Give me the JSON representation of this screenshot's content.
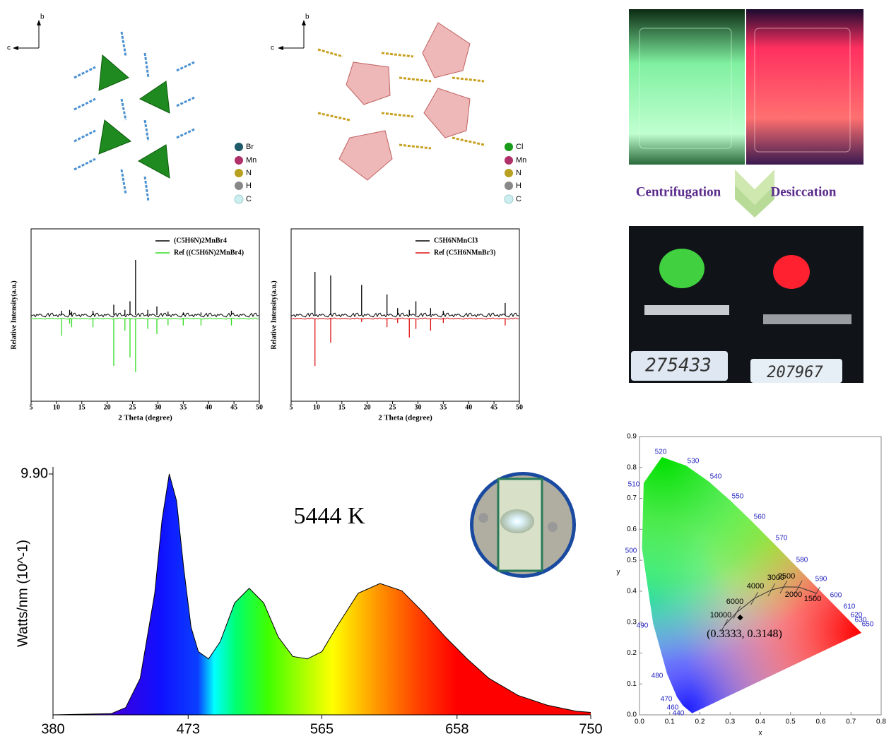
{
  "structures": [
    {
      "axis_b": "b",
      "axis_c": "c",
      "legend": [
        "Br",
        "Mn",
        "N",
        "H",
        "C"
      ]
    },
    {
      "axis_b": "b",
      "axis_c": "c",
      "legend": [
        "Cl",
        "Mn",
        "N",
        "H",
        "C"
      ]
    }
  ],
  "process": {
    "steps": [
      "Centrifugation",
      "Desiccation"
    ],
    "balance_readings": [
      "275433",
      "207967"
    ]
  },
  "chart_data": [
    {
      "type": "stem",
      "x_label": "2 Theta (degree)",
      "y_label": "Relative Intensity(a.u.)",
      "xlim": [
        5,
        50
      ],
      "xticks": [
        5,
        10,
        15,
        20,
        25,
        30,
        35,
        40,
        45,
        50
      ],
      "ylim": [
        -100,
        100
      ],
      "x": [
        11,
        12.6,
        13,
        17.2,
        21.3,
        23.5,
        24.5,
        25.6,
        28,
        29.8,
        32,
        35,
        38.5,
        44.5
      ],
      "series": [
        {
          "name": "(C5H6N)2MnBr4",
          "color": "#000000",
          "values": [
            5,
            6,
            4,
            5,
            12,
            6,
            16,
            64,
            6,
            10,
            4,
            3,
            3,
            5
          ]
        },
        {
          "name": "Ref ((C5H6N)2MnBr4)",
          "color": "#33dd22",
          "values": [
            -20,
            -6,
            -10,
            -10,
            -55,
            -14,
            -45,
            -62,
            -12,
            -18,
            -8,
            -8,
            -8,
            -8
          ]
        }
      ]
    },
    {
      "type": "stem",
      "x_label": "2 Theta (degree)",
      "y_label": "Relative Intensity(a.u.)",
      "xlim": [
        5,
        50
      ],
      "xticks": [
        5,
        10,
        15,
        20,
        25,
        30,
        35,
        40,
        45,
        50
      ],
      "ylim": [
        -100,
        100
      ],
      "x": [
        9.7,
        12.8,
        18.9,
        23.9,
        26,
        28.3,
        29.6,
        32.5,
        35,
        47.2
      ],
      "series": [
        {
          "name": "C5H6NMnCl3",
          "color": "#000000",
          "values": [
            50,
            46,
            35,
            24,
            8,
            6,
            16,
            8,
            5,
            14
          ]
        },
        {
          "name": "Ref (C5H6NMnBr3)",
          "color": "#dd1111",
          "values": [
            -55,
            -28,
            -4,
            -10,
            -5,
            -22,
            -12,
            -14,
            -5,
            -8
          ]
        }
      ]
    },
    {
      "type": "spectrum",
      "y_label": "Watts/nm (10^-1)",
      "annotation": "5444 K",
      "xlim": [
        380,
        750
      ],
      "xticks": [
        380,
        473,
        565,
        658,
        750
      ],
      "ylim": [
        0,
        9.9
      ],
      "yticks": [
        {
          "value": 9.9,
          "label": "9.90"
        }
      ],
      "x": [
        380,
        420,
        430,
        440,
        450,
        455,
        460,
        465,
        470,
        475,
        480,
        487,
        495,
        505,
        515,
        525,
        535,
        545,
        555,
        565,
        575,
        590,
        605,
        620,
        635,
        650,
        665,
        680,
        700,
        720,
        740,
        750
      ],
      "values": [
        0,
        0.05,
        0.3,
        1.5,
        5,
        8,
        9.9,
        8.8,
        6,
        3.6,
        2.6,
        2.3,
        3,
        4.6,
        5.2,
        4.6,
        3.2,
        2.4,
        2.3,
        2.6,
        3.6,
        5,
        5.4,
        5.1,
        4.2,
        3.2,
        2.3,
        1.5,
        0.8,
        0.4,
        0.15,
        0.1
      ]
    },
    {
      "type": "cie",
      "x_label": "x",
      "y_label": "y",
      "xlim": [
        0,
        0.8
      ],
      "ylim": [
        0,
        0.9
      ],
      "xticks": [
        {
          "value": 0,
          "label": "0.0"
        },
        0.1,
        0.2,
        0.3,
        0.4,
        0.5,
        0.6,
        0.7,
        0.8
      ],
      "yticks": [
        {
          "value": 0,
          "label": "0.0"
        },
        0.1,
        0.2,
        0.3,
        0.4,
        0.5,
        0.6,
        0.7,
        0.8,
        0.9
      ],
      "locus_labels": [
        "440",
        "460",
        "470",
        "480",
        "490",
        "500",
        "510",
        "520",
        "530",
        "540",
        "550",
        "560",
        "570",
        "580",
        "590",
        "600",
        "610",
        "620",
        "630",
        "650"
      ],
      "cct_labels": [
        "10000",
        "6000",
        "4000",
        "3000",
        "2500",
        "2000",
        "1500"
      ],
      "x": [
        0.3333
      ],
      "values": [
        0.3148
      ],
      "value_labels": [
        "(0.3333, 0.3148)"
      ]
    }
  ]
}
